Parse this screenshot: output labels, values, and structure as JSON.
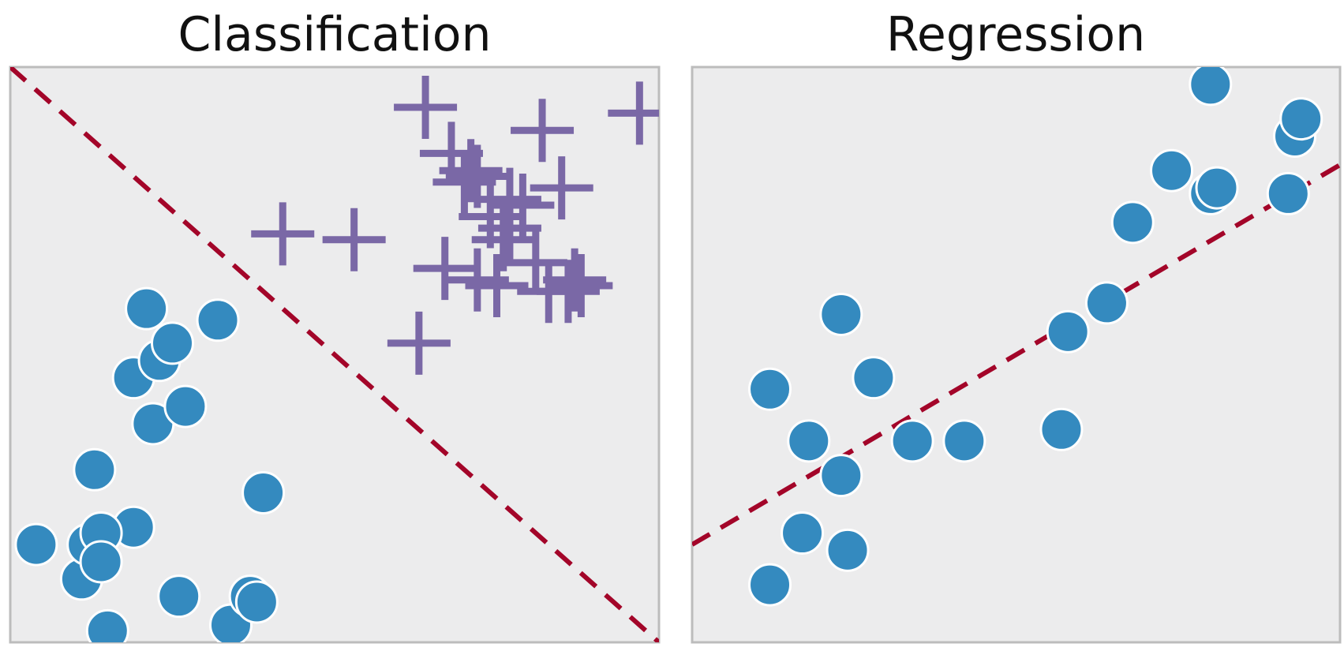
{
  "colors": {
    "panel_background": "#ececed",
    "panel_border": "#bcbcbc",
    "circle_points": "#348abf",
    "circle_edge": "#ffffff",
    "plus_points": "#7a68a6",
    "dashed_line": "#a30529"
  },
  "chart_data": [
    {
      "type": "scatter",
      "title": "Classification",
      "xlabel": "",
      "ylabel": "",
      "xlim": [
        0,
        1
      ],
      "ylim": [
        0,
        1
      ],
      "grid": false,
      "series": [
        {
          "marker": "circle",
          "color": "#348abf",
          "x": [
            0.04,
            0.11,
            0.12,
            0.13,
            0.15,
            0.19,
            0.19,
            0.21,
            0.22,
            0.23,
            0.25,
            0.26,
            0.27,
            0.32,
            0.34,
            0.37,
            0.38,
            0.39,
            0.14,
            0.14
          ],
          "y": [
            0.17,
            0.11,
            0.17,
            0.3,
            0.02,
            0.2,
            0.46,
            0.58,
            0.38,
            0.49,
            0.52,
            0.08,
            0.41,
            0.56,
            0.03,
            0.08,
            0.07,
            0.26,
            0.19,
            0.14
          ]
        },
        {
          "marker": "plus",
          "color": "#7a68a6",
          "x": [
            0.42,
            0.53,
            0.63,
            0.64,
            0.67,
            0.68,
            0.7,
            0.71,
            0.72,
            0.72,
            0.74,
            0.75,
            0.76,
            0.77,
            0.77,
            0.79,
            0.81,
            0.82,
            0.83,
            0.85,
            0.86,
            0.87,
            0.88,
            0.97
          ],
          "y": [
            0.71,
            0.7,
            0.52,
            0.93,
            0.65,
            0.85,
            0.8,
            0.82,
            0.81,
            0.63,
            0.74,
            0.62,
            0.7,
            0.77,
            0.72,
            0.76,
            0.66,
            0.89,
            0.61,
            0.79,
            0.61,
            0.63,
            0.62,
            0.92
          ]
        }
      ],
      "line": {
        "style": "dashed",
        "color": "#a30529",
        "x": [
          0,
          1
        ],
        "y": [
          1,
          0
        ]
      }
    },
    {
      "type": "scatter",
      "title": "Regression",
      "xlabel": "",
      "ylabel": "",
      "xlim": [
        0,
        1
      ],
      "ylim": [
        0,
        1
      ],
      "grid": false,
      "series": [
        {
          "marker": "circle",
          "color": "#348abf",
          "x": [
            0.12,
            0.12,
            0.17,
            0.18,
            0.23,
            0.23,
            0.24,
            0.28,
            0.34,
            0.42,
            0.57,
            0.58,
            0.64,
            0.68,
            0.74,
            0.8,
            0.8,
            0.81,
            0.92,
            0.93,
            0.94
          ],
          "y": [
            0.1,
            0.44,
            0.19,
            0.35,
            0.29,
            0.57,
            0.16,
            0.46,
            0.35,
            0.35,
            0.37,
            0.54,
            0.59,
            0.73,
            0.82,
            0.97,
            0.78,
            0.79,
            0.78,
            0.88,
            0.91
          ]
        }
      ],
      "line": {
        "style": "dashed",
        "color": "#a30529",
        "x": [
          0,
          1
        ],
        "y": [
          0.17,
          0.83
        ]
      }
    }
  ]
}
